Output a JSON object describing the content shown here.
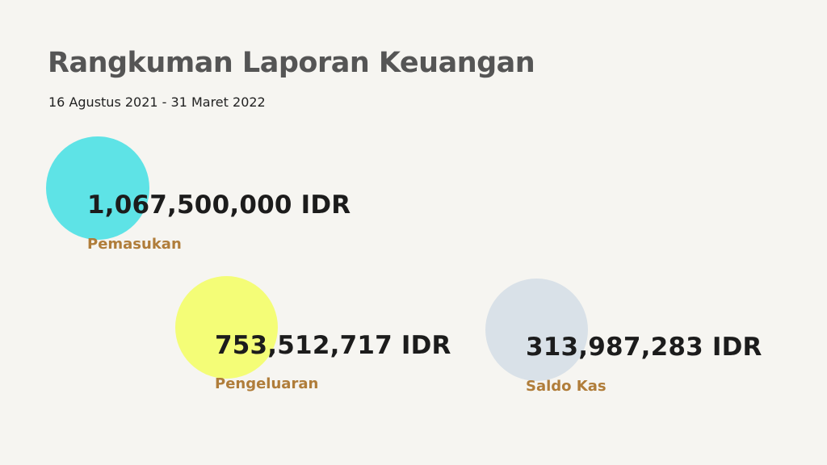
{
  "report": {
    "title": "Rangkuman Laporan Keuangan",
    "period": "16 Agustus 2021 - 31 Maret 2022"
  },
  "metrics": [
    {
      "label": "Pemasukan",
      "amount": "1,067,500,000 IDR",
      "color": "#5ee3e6"
    },
    {
      "label": "Pengeluaran",
      "amount": "753,512,717 IDR",
      "color": "#f4fd77"
    },
    {
      "label": "Saldo Kas",
      "amount": "313,987,283 IDR",
      "color": "#d9e1e8"
    }
  ],
  "colors": {
    "background": "#f6f5f1",
    "title": "#555555",
    "amount": "#1c1c1c",
    "label": "#b07d3a"
  }
}
